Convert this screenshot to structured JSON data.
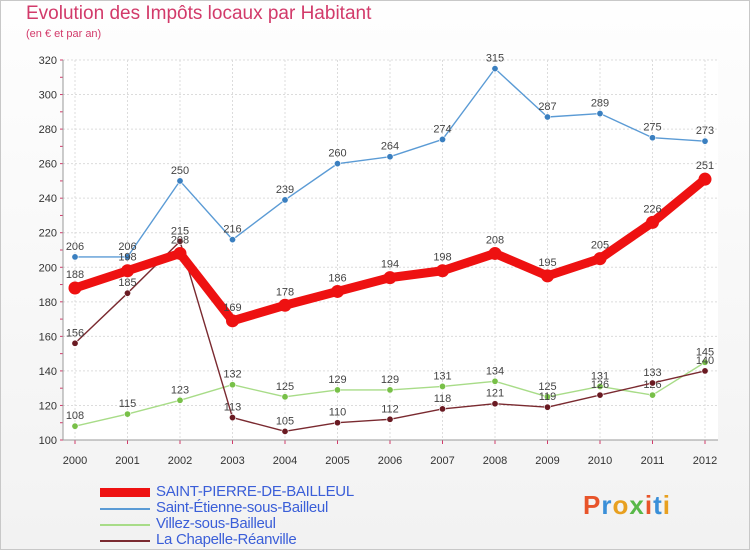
{
  "header": {
    "title": "Evolution des Impôts locaux par Habitant",
    "subtitle": "(en € et par an)"
  },
  "logo": {
    "text": "Proxiti",
    "colors": [
      "#e8542a",
      "#3a8fd8",
      "#e8a020",
      "#58b848",
      "#e8542a",
      "#3a8fd8",
      "#e8a020"
    ]
  },
  "chart_data": {
    "type": "line",
    "title": "Evolution des Impôts locaux par Habitant",
    "subtitle": "(en € et par an)",
    "xlabel": "",
    "ylabel": "",
    "x": [
      "2000",
      "2001",
      "2002",
      "2003",
      "2004",
      "2005",
      "2006",
      "2007",
      "2008",
      "2009",
      "2010",
      "2011",
      "2012"
    ],
    "ylim": [
      100,
      320
    ],
    "yticks": [
      100,
      120,
      140,
      160,
      180,
      200,
      220,
      240,
      260,
      280,
      300,
      320
    ],
    "grid": true,
    "legend_position": "bottom-left",
    "series": [
      {
        "name": "Saint-Étienne-sous-Bailleul",
        "color": "#5b9bd5",
        "point_color": "#3a7fc0",
        "emphasis": false,
        "values": [
          206,
          206,
          250,
          216,
          239,
          260,
          264,
          274,
          315,
          287,
          289,
          275,
          273
        ]
      },
      {
        "name": "Villez-sous-Bailleul",
        "color": "#a8dc88",
        "point_color": "#78c048",
        "emphasis": false,
        "values": [
          108,
          115,
          123,
          132,
          125,
          129,
          129,
          131,
          134,
          125,
          131,
          126,
          145
        ]
      },
      {
        "name": "La Chapelle-Réanville",
        "color": "#7a2a30",
        "point_color": "#6a1a22",
        "emphasis": false,
        "values": [
          156,
          185,
          215,
          113,
          105,
          110,
          112,
          118,
          121,
          119,
          126,
          133,
          140
        ]
      },
      {
        "name": "SAINT-PIERRE-DE-BAILLEUL",
        "color": "#ee1111",
        "point_color": "#ee1111",
        "emphasis": true,
        "values": [
          188,
          198,
          208,
          169,
          178,
          186,
          194,
          198,
          208,
          195,
          205,
          226,
          251
        ]
      }
    ]
  }
}
